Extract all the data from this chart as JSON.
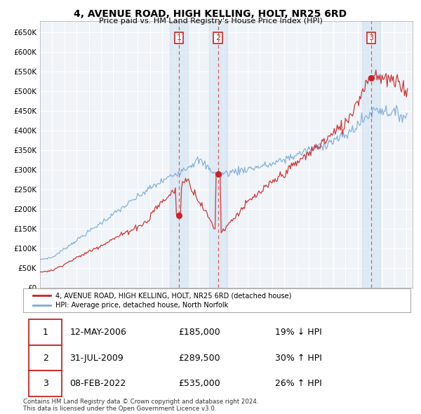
{
  "title": "4, AVENUE ROAD, HIGH KELLING, HOLT, NR25 6RD",
  "subtitle": "Price paid vs. HM Land Registry's House Price Index (HPI)",
  "ytick_values": [
    0,
    50000,
    100000,
    150000,
    200000,
    250000,
    300000,
    350000,
    400000,
    450000,
    500000,
    550000,
    600000,
    650000
  ],
  "x_start_year": 1995,
  "x_end_year": 2025,
  "sale_year_nums": [
    2006.37,
    2009.58,
    2022.11
  ],
  "sale_prices": [
    185000,
    289500,
    535000
  ],
  "sale_labels": [
    "1",
    "2",
    "3"
  ],
  "vline_color": "#dd4444",
  "shade_color": "#cce0f0",
  "shade_alpha": 0.5,
  "hpi_line_color": "#7aabdb",
  "price_line_color": "#cc2222",
  "dot_color": "#cc2222",
  "legend_entries": [
    "4, AVENUE ROAD, HIGH KELLING, HOLT, NR25 6RD (detached house)",
    "HPI: Average price, detached house, North Norfolk"
  ],
  "table_data": [
    [
      "1",
      "12-MAY-2006",
      "£185,000",
      "19% ↓ HPI"
    ],
    [
      "2",
      "31-JUL-2009",
      "£289,500",
      "30% ↑ HPI"
    ],
    [
      "3",
      "08-FEB-2022",
      "£535,000",
      "26% ↑ HPI"
    ]
  ],
  "footnote": "Contains HM Land Registry data © Crown copyright and database right 2024.\nThis data is licensed under the Open Government Licence v3.0.",
  "background_color": "#ffffff",
  "plot_bg_color": "#f0f4f8",
  "grid_color": "#ffffff"
}
